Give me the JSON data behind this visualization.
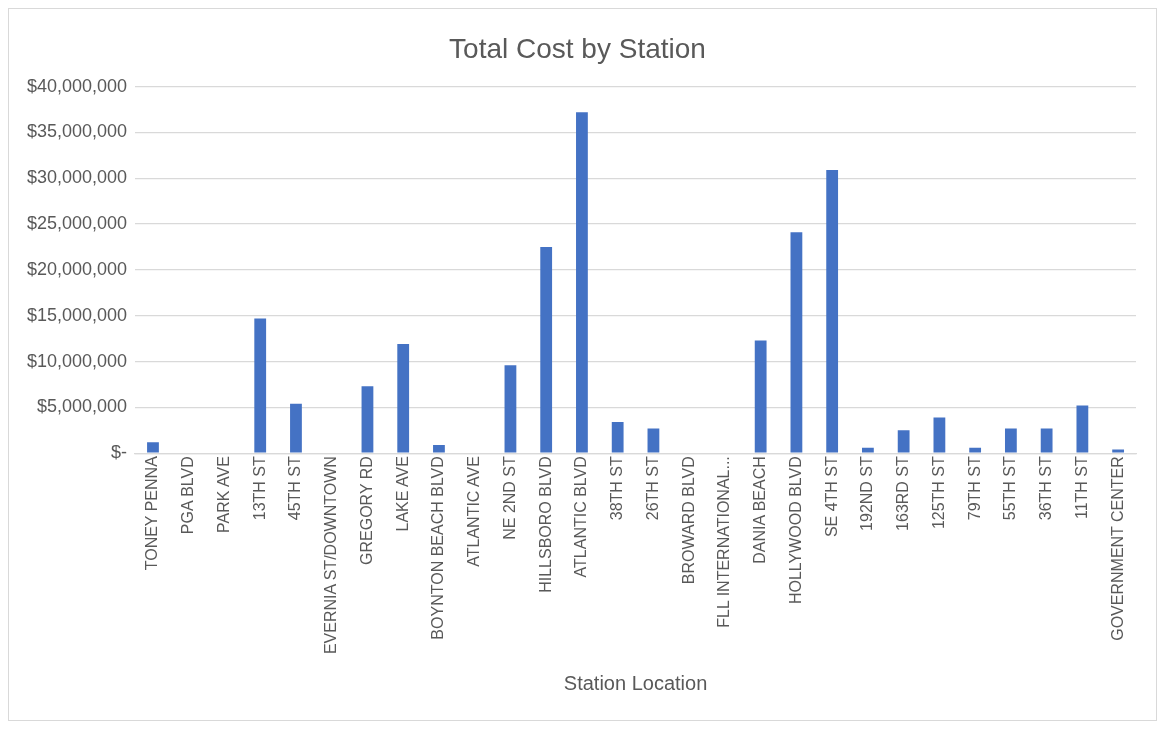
{
  "chart_data": {
    "type": "bar",
    "title": "Total Cost by Station",
    "xlabel": "Station Location",
    "categories": [
      "TONEY PENNA",
      "PGA BLVD",
      "PARK AVE",
      "13TH ST",
      "45TH ST",
      "EVERNIA ST/DOWNTOWN",
      "GREGORY RD",
      "LAKE AVE",
      "BOYNTON BEACH BLVD",
      "ATLANTIC AVE",
      "NE 2ND ST",
      "HILLSBORO BLVD",
      "ATLANTIC BLVD",
      "38TH ST",
      "26TH ST",
      "BROWARD BLVD",
      "FLL INTERNATIONAL...",
      "DANIA BEACH",
      "HOLLYWOOD BLVD",
      "SE 4TH ST",
      "192ND ST",
      "163RD ST",
      "125TH ST",
      "79TH ST",
      "55TH ST",
      "36TH ST",
      "11TH ST",
      "GOVERNMENT CENTER"
    ],
    "values": [
      1200000,
      0,
      0,
      14700000,
      5400000,
      0,
      7300000,
      11900000,
      900000,
      0,
      9600000,
      22500000,
      37200000,
      3400000,
      2700000,
      0,
      0,
      12300000,
      24100000,
      30900000,
      600000,
      2500000,
      3900000,
      600000,
      2700000,
      2700000,
      5200000,
      400000
    ],
    "color": "#4472c4",
    "ylim": [
      0,
      40000000
    ],
    "yticks": [
      {
        "value": 0,
        "label": "$-"
      },
      {
        "value": 5000000,
        "label": "$5,000,000"
      },
      {
        "value": 10000000,
        "label": "$10,000,000"
      },
      {
        "value": 15000000,
        "label": "$15,000,000"
      },
      {
        "value": 20000000,
        "label": "$20,000,000"
      },
      {
        "value": 25000000,
        "label": "$25,000,000"
      },
      {
        "value": 30000000,
        "label": "$30,000,000"
      },
      {
        "value": 35000000,
        "label": "$35,000,000"
      },
      {
        "value": 40000000,
        "label": "$40,000,000"
      }
    ],
    "grid": "y",
    "legend": false
  }
}
